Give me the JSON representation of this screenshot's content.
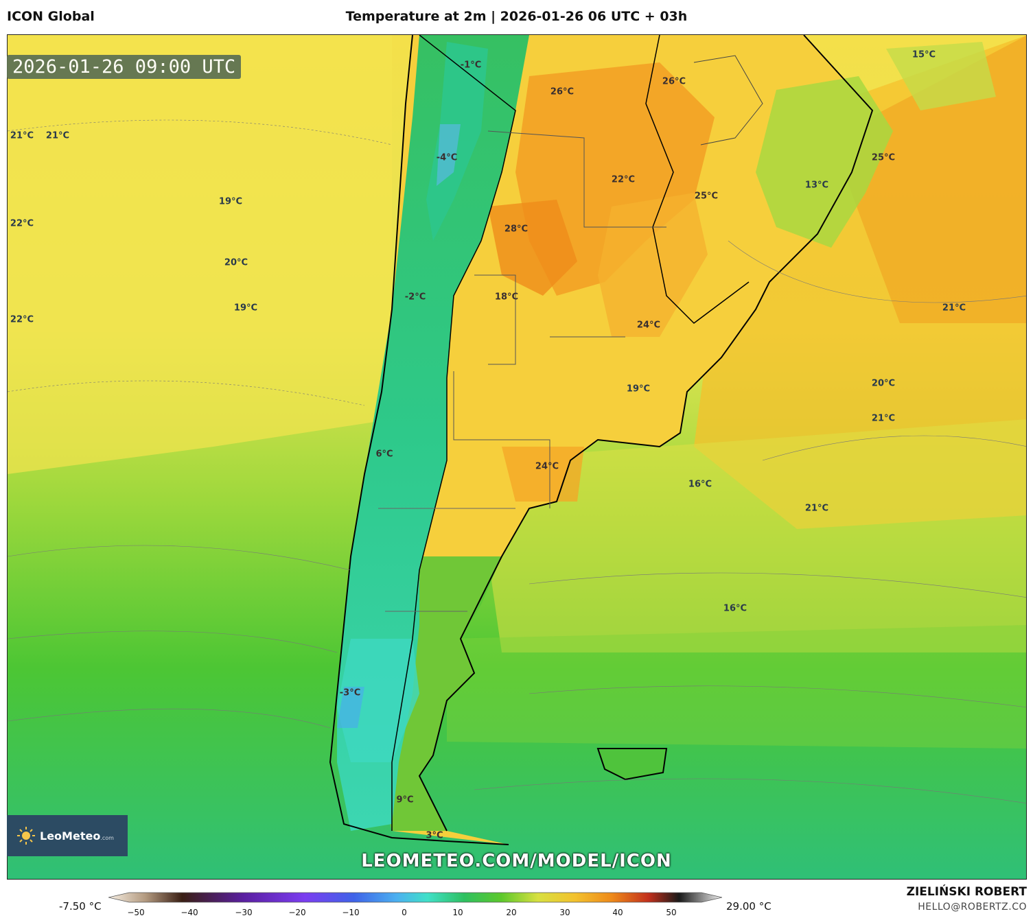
{
  "header": {
    "model": "ICON Global",
    "title": "Temperature at 2m | 2026-01-26 06 UTC + 03h"
  },
  "map": {
    "valid_time": "2026-01-26 09:00 UTC",
    "labels": [
      {
        "text": "21°C",
        "name": "label-21-a"
      },
      {
        "text": "21°C",
        "name": "label-21-b"
      },
      {
        "text": "22°C",
        "name": "label-22-a"
      },
      {
        "text": "22°C",
        "name": "label-22-b"
      },
      {
        "text": "19°C",
        "name": "label-19-a"
      },
      {
        "text": "20°C",
        "name": "label-20-a"
      },
      {
        "text": "19°C",
        "name": "label-19-b"
      },
      {
        "text": "-1°C",
        "name": "label-m1"
      },
      {
        "text": "-4°C",
        "name": "label-m4"
      },
      {
        "text": "26°C",
        "name": "label-26-a"
      },
      {
        "text": "26°C",
        "name": "label-26-b"
      },
      {
        "text": "15°C",
        "name": "label-15"
      },
      {
        "text": "25°C",
        "name": "label-25-a"
      },
      {
        "text": "22°C",
        "name": "label-22-c"
      },
      {
        "text": "25°C",
        "name": "label-25-b"
      },
      {
        "text": "13°C",
        "name": "label-13"
      },
      {
        "text": "28°C",
        "name": "label-28"
      },
      {
        "text": "-2°C",
        "name": "label-m2"
      },
      {
        "text": "18°C",
        "name": "label-18"
      },
      {
        "text": "24°C",
        "name": "label-24-a"
      },
      {
        "text": "21°C",
        "name": "label-21-c"
      },
      {
        "text": "19°C",
        "name": "label-19-c"
      },
      {
        "text": "20°C",
        "name": "label-20-b"
      },
      {
        "text": "21°C",
        "name": "label-21-d"
      },
      {
        "text": "6°C",
        "name": "label-6"
      },
      {
        "text": "24°C",
        "name": "label-24-b"
      },
      {
        "text": "16°C",
        "name": "label-16-a"
      },
      {
        "text": "21°C",
        "name": "label-21-e"
      },
      {
        "text": "16°C",
        "name": "label-16-b"
      },
      {
        "text": "-3°C",
        "name": "label-m3"
      },
      {
        "text": "9°C",
        "name": "label-9"
      },
      {
        "text": "3°C",
        "name": "label-3"
      }
    ]
  },
  "branding": {
    "logo_text": "LeoMeteo",
    "logo_suffix": ".com",
    "url": "LEOMETEO.COM/MODEL/ICON",
    "author": "ZIELIŃSKI ROBERT",
    "email": "HELLO@ROBERTZ.CO"
  },
  "colorbar": {
    "min_label": "-7.50 °C",
    "max_label": "29.00 °C",
    "ticks": [
      "−50",
      "−40",
      "−30",
      "−20",
      "−10",
      "0",
      "10",
      "20",
      "30",
      "40",
      "50"
    ]
  }
}
